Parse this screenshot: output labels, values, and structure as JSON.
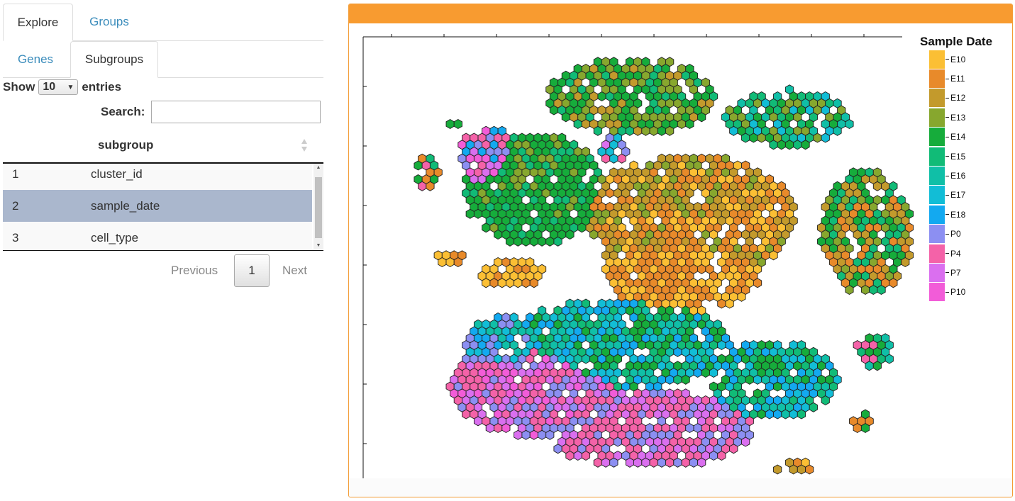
{
  "tabs_top": [
    {
      "label": "Explore",
      "active": true
    },
    {
      "label": "Groups",
      "active": false
    }
  ],
  "tabs_sub": [
    {
      "label": "Genes",
      "active": false
    },
    {
      "label": "Subgroups",
      "active": true
    }
  ],
  "length_menu": {
    "prefix": "Show",
    "value": "10",
    "suffix": "entries"
  },
  "search": {
    "label": "Search:",
    "value": ""
  },
  "table": {
    "header": "subgroup",
    "rows": [
      {
        "index": "1",
        "value": "cluster_id"
      },
      {
        "index": "2",
        "value": "sample_date"
      },
      {
        "index": "3",
        "value": "cell_type"
      }
    ]
  },
  "pagination": {
    "previous": "Previous",
    "page": "1",
    "next": "Next"
  },
  "plot": {
    "legend_title": "Sample Date",
    "legend": [
      {
        "label": "E10",
        "color": "#FBBF34"
      },
      {
        "label": "E11",
        "color": "#E88A2A"
      },
      {
        "label": "E12",
        "color": "#C39A2C"
      },
      {
        "label": "E13",
        "color": "#87A72E"
      },
      {
        "label": "E14",
        "color": "#16AC3B"
      },
      {
        "label": "E15",
        "color": "#11BB77"
      },
      {
        "label": "E16",
        "color": "#10BFA7"
      },
      {
        "label": "E17",
        "color": "#12BDD6"
      },
      {
        "label": "E18",
        "color": "#13A9F0"
      },
      {
        "label": "P0",
        "color": "#8C8FF2"
      },
      {
        "label": "P4",
        "color": "#F462A8"
      },
      {
        "label": "P7",
        "color": "#DA6FEF"
      },
      {
        "label": "P10",
        "color": "#F25CD8"
      }
    ]
  }
}
